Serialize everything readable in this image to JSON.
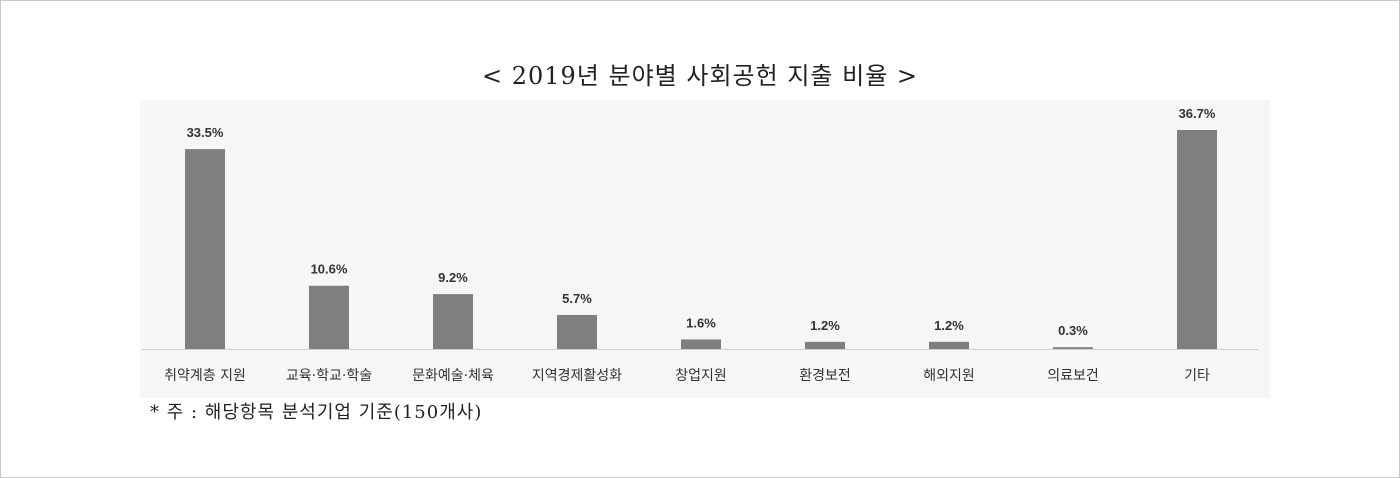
{
  "chart_data": {
    "type": "bar",
    "title": "< 2019년 분야별 사회공헌 지출 비율 >",
    "categories": [
      "취약계층 지원",
      "교육·학교·학술",
      "문화예술·체육",
      "지역경제활성화",
      "창업지원",
      "환경보전",
      "해외지원",
      "의료보건",
      "기타"
    ],
    "values": [
      33.5,
      10.6,
      9.2,
      5.7,
      1.6,
      1.2,
      1.2,
      0.3,
      36.7
    ],
    "value_labels": [
      "33.5%",
      "10.6%",
      "9.2%",
      "5.7%",
      "1.6%",
      "1.2%",
      "1.2%",
      "0.3%",
      "36.7%"
    ],
    "ylim": [
      0,
      36.7
    ],
    "grid": false,
    "legend": "none",
    "bar_color": "#7f7f7f"
  },
  "footnote": "* 주 : 해당항목 분석기업 기준(150개사)"
}
